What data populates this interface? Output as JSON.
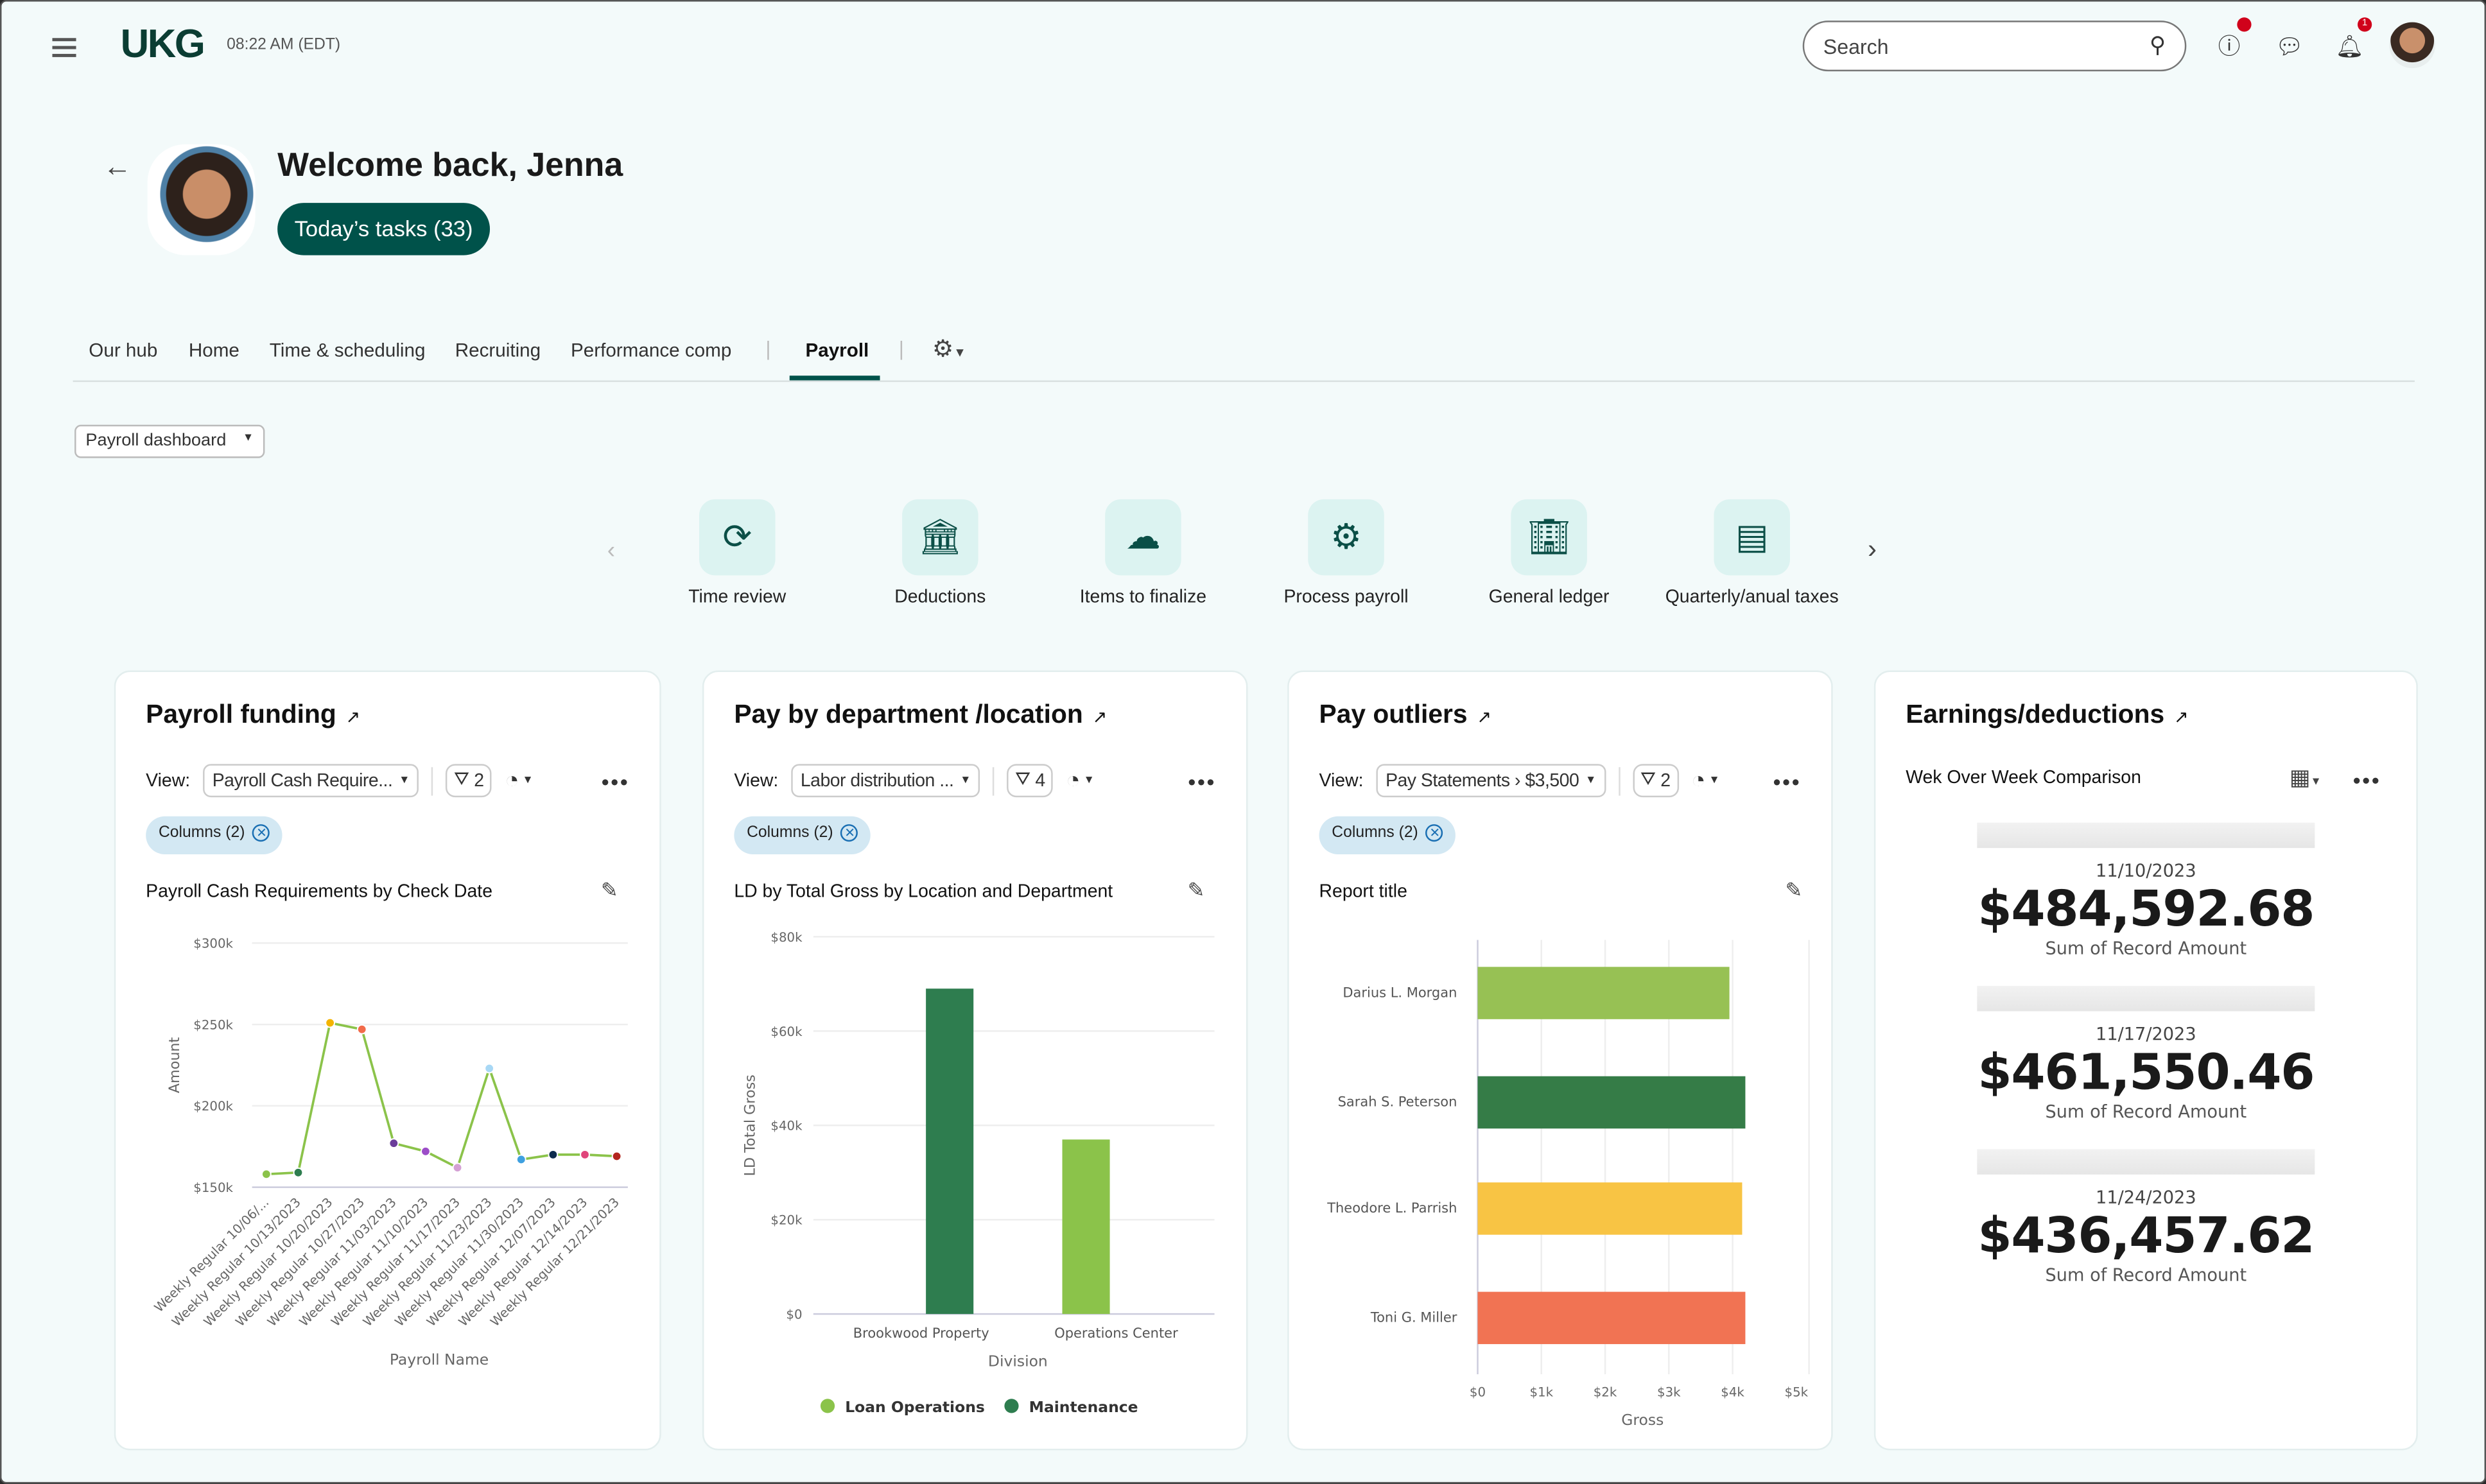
{
  "header": {
    "logo": "UKG",
    "time": "08:22 AM (EDT)",
    "search_placeholder": "Search",
    "notification_count": "1",
    "icons": [
      "menu-icon",
      "search-icon",
      "help-icon",
      "chat-icon",
      "bell-icon",
      "avatar"
    ]
  },
  "welcome": {
    "title": "Welcome back, Jenna",
    "tasks_button": "Today’s tasks (33)"
  },
  "tabs": [
    {
      "label": "Our hub"
    },
    {
      "label": "Home"
    },
    {
      "label": "Time & scheduling"
    },
    {
      "label": "Recruiting"
    },
    {
      "label": "Performance comp"
    },
    {
      "label": "Payroll",
      "active": true
    }
  ],
  "dashboard_select": "Payroll dashboard",
  "quick_actions": [
    {
      "label": "Time review",
      "icon": "clock-refresh-icon"
    },
    {
      "label": "Deductions",
      "icon": "bank-dollar-icon"
    },
    {
      "label": "Items to finalize",
      "icon": "cloud-network-icon"
    },
    {
      "label": "Process payroll",
      "icon": "gears-person-icon"
    },
    {
      "label": "General ledger",
      "icon": "building-icon"
    },
    {
      "label": "Quarterly/anual taxes",
      "icon": "document-icon"
    }
  ],
  "cards": {
    "funding": {
      "title": "Payroll  funding",
      "view_label": "View:",
      "view": "Payroll Cash Require...",
      "filter_count": "2",
      "chip": "Columns (2)",
      "subtitle": "Payroll Cash Requirements by Check Date"
    },
    "department": {
      "title": "Pay by department /location",
      "view_label": "View:",
      "view": "Labor distribution ...",
      "filter_count": "4",
      "chip": "Columns (2)",
      "subtitle": "LD by Total Gross by Location and Department"
    },
    "outliers": {
      "title": "Pay outliers",
      "view_label": "View:",
      "view": "Pay Statements › $3,500",
      "filter_count": "2",
      "chip": "Columns (2)",
      "subtitle": "Report title"
    },
    "earnings": {
      "title": "Earnings/deductions",
      "subtitle": "Wek Over Week Comparison",
      "kpis": [
        {
          "date": "11/10/2023",
          "value": "$484,592.68",
          "label": "Sum of Record Amount"
        },
        {
          "date": "11/17/2023",
          "value": "$461,550.46",
          "label": "Sum of Record Amount"
        },
        {
          "date": "11/24/2023",
          "value": "$436,457.62",
          "label": "Sum of Record Amount"
        }
      ]
    }
  },
  "chart_data": [
    {
      "type": "line",
      "xlabel": "Payroll Name",
      "ylabel": "Amount",
      "ylim": [
        150000,
        300000
      ],
      "yticks": [
        "$150k",
        "$200k",
        "$250k",
        "$300k"
      ],
      "grid": true,
      "categories": [
        "Weekly Regular 10/06/...",
        "Weekly Regular 10/13/2023",
        "Weekly Regular 10/20/2023",
        "Weekly Regular 10/27/2023",
        "Weekly Regular 11/03/2023",
        "Weekly Regular 11/10/2023",
        "Weekly Regular 11/17/2023",
        "Weekly Regular 11/23/2023",
        "Weekly Regular 11/30/2023",
        "Weekly Regular 12/07/2023",
        "Weekly Regular 12/14/2023",
        "Weekly Regular 12/21/2023"
      ],
      "values": [
        158000,
        159000,
        251000,
        247000,
        177000,
        172000,
        162000,
        223000,
        167000,
        170000,
        170000,
        169000
      ],
      "line_color": "#8bc34a",
      "point_colors": [
        "#8bc34a",
        "#2e7d4f",
        "#f4b400",
        "#f26b4a",
        "#6a3d9a",
        "#9c4dc8",
        "#d4a0d4",
        "#a8d8f5",
        "#3ea0e0",
        "#0d2b4e",
        "#e0457b",
        "#b3261e"
      ]
    },
    {
      "type": "bar",
      "xlabel": "Division",
      "ylabel": "LD Total Gross",
      "ylim": [
        0,
        80000
      ],
      "yticks": [
        "$0",
        "$20k",
        "$40k",
        "$60k",
        "$80k"
      ],
      "grid": true,
      "legend": "bottom",
      "categories": [
        "Brookwood Property",
        "Operations Center"
      ],
      "series": [
        {
          "name": "Loan Operations",
          "color": "#8bc34a",
          "values": [
            0,
            37000
          ]
        },
        {
          "name": "Maintenance",
          "color": "#2e7d4f",
          "values": [
            69000,
            0
          ]
        }
      ]
    },
    {
      "type": "bar",
      "orientation": "horizontal",
      "xlabel": "Gross",
      "xlim": [
        0,
        5000
      ],
      "xticks": [
        "$0",
        "$1k",
        "$2k",
        "$3k",
        "$4k",
        "$5k"
      ],
      "grid": true,
      "categories": [
        "Darius L. Morgan",
        "Sarah S. Peterson",
        "Theodore L. Parrish",
        "Toni G. Miller"
      ],
      "values": [
        3950,
        4200,
        4150,
        4200
      ],
      "colors": [
        "#97c154",
        "#357c47",
        "#f8c444",
        "#f17353"
      ]
    }
  ]
}
